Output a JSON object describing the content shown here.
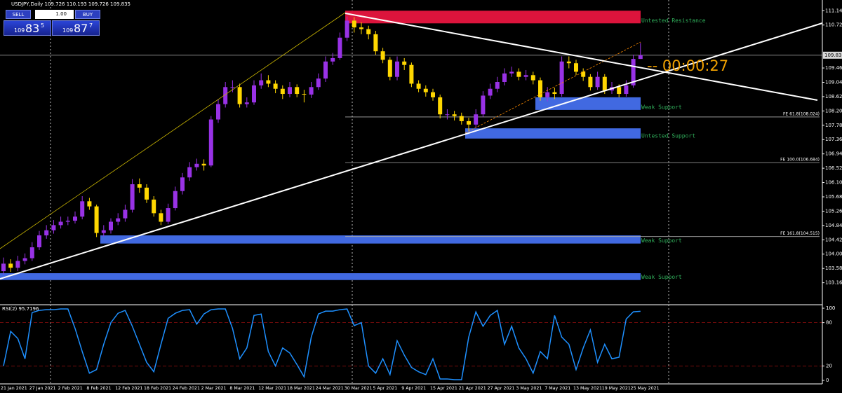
{
  "header": {
    "symbol_info": "USDJPY,Daily  109.726 110.193 109.726 109.835",
    "countdown": "--  00:00:27"
  },
  "trade_panel": {
    "sell": "SELL",
    "lots": "1.00",
    "buy": "BUY",
    "bid": {
      "big": "109",
      "main": "83",
      "small": "5"
    },
    "ask": {
      "big": "109",
      "main": "87",
      "small": "7"
    }
  },
  "chart_data": [
    {
      "type": "candlestick",
      "categories": [
        "21 Jan 2021",
        null,
        null,
        null,
        "27 Jan 2021",
        null,
        null,
        null,
        "2 Feb 2021",
        null,
        null,
        null,
        "8 Feb 2021",
        null,
        null,
        null,
        "12 Feb 2021",
        null,
        null,
        null,
        "18 Feb 2021",
        null,
        null,
        null,
        "24 Feb 2021",
        null,
        null,
        null,
        "2 Mar 2021",
        null,
        null,
        null,
        "8 Mar 2021",
        null,
        null,
        null,
        "12 Mar 2021",
        null,
        null,
        null,
        "18 Mar 2021",
        null,
        null,
        null,
        "24 Mar 2021",
        null,
        null,
        null,
        "30 Mar 2021",
        null,
        null,
        null,
        "5 Apr 2021",
        null,
        null,
        null,
        "9 Apr 2021",
        null,
        null,
        null,
        "15 Apr 2021",
        null,
        null,
        null,
        "21 Apr 2021",
        null,
        null,
        null,
        "27 Apr 2021",
        null,
        null,
        null,
        "3 May 2021",
        null,
        null,
        null,
        "7 May 2021",
        null,
        null,
        null,
        "13 May 2021",
        null,
        null,
        null,
        "19 May 2021",
        null,
        null,
        null,
        "25 May 2021",
        null
      ],
      "open": [
        103.5,
        103.72,
        103.6,
        103.8,
        103.88,
        104.2,
        104.55,
        104.7,
        104.85,
        104.95,
        104.98,
        105.1,
        105.55,
        105.4,
        104.62,
        104.7,
        104.95,
        105.05,
        105.3,
        106.05,
        105.95,
        105.6,
        105.2,
        104.95,
        105.35,
        105.85,
        106.25,
        106.55,
        106.65,
        106.6,
        107.95,
        108.4,
        108.9,
        108.9,
        108.4,
        108.45,
        108.95,
        109.1,
        109.0,
        108.85,
        108.7,
        108.9,
        108.7,
        108.68,
        108.9,
        109.15,
        109.65,
        109.75,
        110.35,
        110.85,
        110.65,
        110.6,
        110.45,
        109.95,
        109.7,
        109.2,
        109.65,
        109.55,
        109.0,
        108.85,
        108.75,
        108.6,
        108.1,
        108.1,
        108.05,
        107.9,
        107.8,
        108.1,
        108.65,
        108.85,
        109.05,
        109.3,
        109.35,
        109.2,
        109.25,
        109.1,
        108.6,
        108.75,
        108.7,
        109.65,
        109.6,
        109.35,
        109.2,
        108.9,
        109.2,
        108.8,
        108.9,
        108.7,
        108.95,
        109.726
      ],
      "high": [
        103.9,
        103.85,
        103.95,
        104.02,
        104.35,
        104.68,
        104.85,
        105.0,
        105.1,
        105.1,
        105.25,
        105.7,
        105.65,
        105.45,
        104.85,
        105.05,
        105.2,
        105.45,
        106.2,
        106.22,
        106.05,
        105.7,
        105.3,
        105.48,
        105.98,
        106.38,
        106.7,
        106.8,
        106.78,
        108.05,
        108.55,
        109.05,
        109.1,
        109.0,
        108.6,
        109.1,
        109.3,
        109.25,
        109.1,
        108.95,
        109.05,
        108.98,
        108.82,
        109.05,
        109.3,
        109.8,
        109.9,
        110.5,
        110.97,
        110.95,
        110.8,
        110.7,
        110.55,
        110.05,
        109.78,
        109.8,
        109.75,
        109.62,
        109.1,
        108.95,
        108.85,
        108.68,
        108.25,
        108.2,
        108.15,
        108.0,
        108.25,
        108.78,
        109.0,
        109.2,
        109.45,
        109.5,
        109.45,
        109.4,
        109.35,
        109.18,
        108.9,
        108.88,
        109.8,
        109.8,
        109.7,
        109.45,
        109.28,
        109.35,
        109.28,
        109.05,
        108.98,
        109.1,
        109.85,
        110.193
      ],
      "low": [
        103.4,
        103.48,
        103.5,
        103.7,
        103.8,
        104.12,
        104.45,
        104.6,
        104.75,
        104.85,
        104.9,
        105.02,
        105.3,
        104.5,
        104.52,
        104.6,
        104.85,
        104.95,
        105.22,
        105.8,
        105.5,
        105.1,
        104.85,
        104.88,
        105.28,
        105.75,
        106.15,
        106.45,
        106.45,
        106.55,
        107.85,
        108.3,
        108.75,
        108.3,
        108.3,
        108.38,
        108.85,
        108.9,
        108.72,
        108.55,
        108.6,
        108.6,
        108.45,
        108.58,
        108.82,
        109.05,
        109.55,
        109.7,
        110.25,
        110.5,
        110.45,
        110.3,
        109.85,
        109.6,
        109.1,
        109.1,
        109.4,
        108.9,
        108.75,
        108.62,
        108.5,
        107.98,
        107.95,
        107.92,
        107.8,
        107.62,
        107.72,
        108.02,
        108.55,
        108.75,
        108.95,
        109.2,
        109.1,
        109.1,
        108.98,
        108.5,
        108.48,
        108.55,
        108.62,
        109.45,
        109.25,
        109.08,
        108.8,
        108.82,
        108.7,
        108.7,
        108.6,
        108.62,
        108.88,
        109.726
      ],
      "close": [
        103.72,
        103.6,
        103.8,
        103.88,
        104.2,
        104.55,
        104.7,
        104.85,
        104.95,
        104.98,
        105.1,
        105.55,
        105.4,
        104.62,
        104.7,
        104.95,
        105.05,
        105.3,
        106.05,
        105.95,
        105.6,
        105.2,
        104.95,
        105.35,
        105.85,
        106.25,
        106.55,
        106.65,
        106.6,
        107.95,
        108.4,
        108.9,
        108.9,
        108.4,
        108.45,
        108.95,
        109.1,
        109.0,
        108.85,
        108.7,
        108.9,
        108.7,
        108.68,
        108.9,
        109.15,
        109.65,
        109.75,
        110.35,
        110.85,
        110.65,
        110.6,
        110.45,
        109.95,
        109.7,
        109.2,
        109.65,
        109.55,
        109.0,
        108.85,
        108.75,
        108.6,
        108.1,
        108.1,
        108.05,
        107.9,
        107.8,
        108.1,
        108.65,
        108.85,
        109.05,
        109.3,
        109.35,
        109.2,
        109.25,
        109.1,
        108.6,
        108.75,
        108.7,
        109.65,
        109.6,
        109.35,
        109.2,
        108.9,
        109.2,
        108.8,
        108.9,
        108.7,
        108.95,
        109.726,
        109.835
      ],
      "up_color": "#9932e6",
      "down_color": "#ffd700",
      "ylim": [
        103.07,
        111.29
      ],
      "yticks": [
        111.14,
        110.72,
        {
          "value": 109.46,
          "label": "109.460"
        },
        109.04,
        108.62,
        {
          "value": 108.2,
          "label": "108.200"
        },
        107.78,
        107.36,
        106.94,
        106.52,
        {
          "value": 106.1,
          "label": "106.100"
        },
        105.68,
        105.26,
        104.84,
        104.42,
        {
          "value": 104,
          "label": "104.000"
        },
        103.58,
        103.16
      ],
      "zones": [
        {
          "label": "Untested Resistance",
          "low": 110.77,
          "high": 111.14,
          "color": "#dc143c"
        },
        {
          "label": "Weak Support",
          "low": 108.23,
          "high": 108.6,
          "color": "#4169e1"
        },
        {
          "label": "Untested Support",
          "low": 107.39,
          "high": 107.69,
          "color": "#4169e1"
        },
        {
          "label": "Weak Support",
          "low": 104.31,
          "high": 104.55,
          "color": "#4169e1"
        },
        {
          "label": "Weak Support",
          "low": 103.24,
          "high": 103.44,
          "color": "#4169e1"
        }
      ],
      "fib_levels": [
        {
          "value": 108.024,
          "label": "FE 61.8(108.024)"
        },
        {
          "value": 106.684,
          "label": "FE 100.0(106.684)"
        },
        {
          "value": 104.515,
          "label": "FE 161.8(104.515)"
        }
      ]
    },
    {
      "type": "line",
      "title": "RSI(2) 95.7196",
      "color": "#1e90ff",
      "values": [
        20,
        68,
        58,
        30,
        94,
        97,
        98,
        98,
        99,
        99,
        72,
        40,
        10,
        15,
        50,
        80,
        93,
        97,
        75,
        50,
        25,
        12,
        50,
        86,
        93,
        97,
        98,
        78,
        92,
        98,
        99,
        99,
        72,
        30,
        45,
        90,
        92,
        40,
        20,
        45,
        38,
        22,
        5,
        60,
        92,
        96,
        96,
        98,
        99,
        76,
        80,
        20,
        10,
        30,
        8,
        55,
        35,
        18,
        12,
        8,
        30,
        2,
        2,
        1,
        1,
        60,
        95,
        75,
        90,
        97,
        50,
        75,
        45,
        30,
        10,
        40,
        30,
        90,
        60,
        50,
        15,
        45,
        70,
        25,
        50,
        30,
        32,
        85,
        95,
        95.7196
      ],
      "ylim": [
        0,
        100
      ],
      "yticks": [
        100,
        80,
        20,
        0
      ]
    }
  ]
}
